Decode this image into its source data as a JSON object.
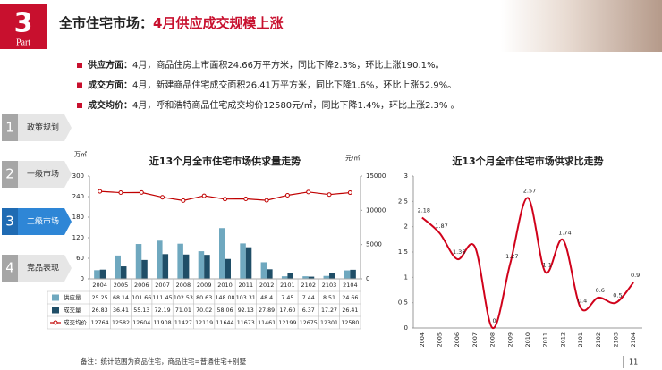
{
  "header": {
    "number": "3",
    "part": "Part",
    "title_lead": "全市住宅市场：",
    "title_highlight": "4月供应成交规模上涨"
  },
  "bullets": [
    {
      "label": "供应方面：",
      "text": "4月，商品住房上市面积24.66万平方米，同比下降2.3%，环比上涨190.1%。"
    },
    {
      "label": "成交方面：",
      "text": "4月，新建商品住宅成交面积26.41万平方米，同比下降1.6%，环比上涨52.9%。"
    },
    {
      "label": "成交均价：",
      "text": "4月，呼和浩特商品住宅成交均价12580元/㎡，同比下降1.4%，环比上涨2.3% 。"
    }
  ],
  "nav": [
    {
      "number": "1",
      "label": "政策规划"
    },
    {
      "number": "2",
      "label": "一级市场"
    },
    {
      "number": "3",
      "label": "二级市场",
      "active": true
    },
    {
      "number": "4",
      "label": "竞品表现"
    }
  ],
  "chart_data": [
    {
      "type": "bar_line",
      "title": "近13个月全市住宅市场供求量走势",
      "y_unit": "万㎡",
      "y2_unit": "元/㎡",
      "categories": [
        "2004",
        "2005",
        "2006",
        "2007",
        "2008",
        "2009",
        "2010",
        "2011",
        "2012",
        "2101",
        "2102",
        "2103",
        "2104"
      ],
      "series": [
        {
          "name": "供应量",
          "type": "bar",
          "color": "#6fa8bf",
          "values": [
            25.25,
            68.14,
            101.66,
            111.45,
            102.53,
            80.63,
            148.08,
            103.31,
            48.4,
            7.45,
            7.44,
            8.51,
            24.66
          ]
        },
        {
          "name": "成交量",
          "type": "bar",
          "color": "#1f4e67",
          "values": [
            26.83,
            36.41,
            55.13,
            72.19,
            71.01,
            70.02,
            58.06,
            92.13,
            27.89,
            17.6,
            6.37,
            17.27,
            26.41
          ],
          "value_labels": [
            "26.83",
            "36.41",
            "55.13",
            "72.19",
            "71.01",
            "70.02",
            "58.06",
            "92.13",
            "27.89",
            "17.60",
            "6.37",
            "17.27",
            "26.41"
          ]
        },
        {
          "name": "成交均价",
          "type": "line",
          "axis": "y2",
          "color": "#c00000",
          "values": [
            12764,
            12582,
            12604,
            11908,
            11427,
            12119,
            11644,
            11673,
            11461,
            12199,
            12675,
            12301,
            12580
          ]
        }
      ],
      "ylim": [
        0,
        300
      ],
      "yticks": [
        0,
        60,
        120,
        180,
        240,
        300
      ],
      "y2lim": [
        0,
        15000
      ],
      "y2ticks": [
        0,
        5000,
        10000,
        15000
      ]
    },
    {
      "type": "line",
      "title": "近13个月全市住宅市场供求比走势",
      "categories": [
        "2004",
        "2005",
        "2006",
        "2007",
        "2008",
        "2009",
        "2010",
        "2011",
        "2012",
        "2101",
        "2102",
        "2103",
        "2104"
      ],
      "values": [
        2.18,
        1.87,
        1.36,
        1.6,
        0,
        1.27,
        2.57,
        1.1,
        1.74,
        0.4,
        0.6,
        0.5,
        0.9
      ],
      "value_labels": [
        "2.18",
        "1.87",
        "1.36",
        null,
        "0",
        "1.27",
        "2.57",
        "1.1",
        "1.74",
        "0.4",
        "0.6",
        "0.5",
        "0.9"
      ],
      "color": "#d0021b",
      "ylim": [
        0,
        3
      ],
      "yticks": [
        0,
        0.5,
        1,
        1.5,
        2,
        2.5,
        3
      ]
    }
  ],
  "footnote": "备注：统计范围为商品住宅，商品住宅=普通住宅+别墅",
  "page_number": "11"
}
